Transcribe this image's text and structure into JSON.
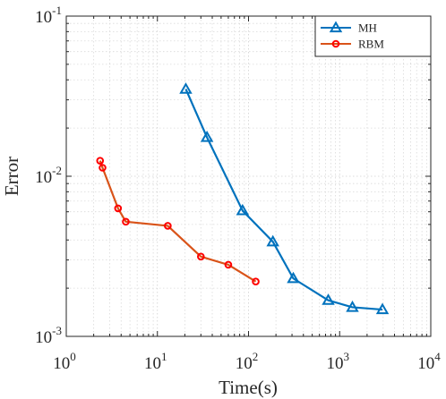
{
  "chart_data": {
    "type": "line",
    "title": "",
    "xlabel": "Time(s)",
    "ylabel": "Error",
    "x_scale": "log",
    "y_scale": "log",
    "xlim": [
      1,
      10000
    ],
    "ylim": [
      0.001,
      0.1
    ],
    "x_ticks": [
      {
        "value": 1,
        "base": "10",
        "exp": "0"
      },
      {
        "value": 10,
        "base": "10",
        "exp": "1"
      },
      {
        "value": 100,
        "base": "10",
        "exp": "2"
      },
      {
        "value": 1000,
        "base": "10",
        "exp": "3"
      },
      {
        "value": 10000,
        "base": "10",
        "exp": "4"
      }
    ],
    "y_ticks": [
      {
        "value": 0.001,
        "base": "10",
        "exp": "-3"
      },
      {
        "value": 0.01,
        "base": "10",
        "exp": "-2"
      },
      {
        "value": 0.1,
        "base": "10",
        "exp": "-1"
      }
    ],
    "grid": true,
    "minor_grid": true,
    "legend_position": "top-right",
    "series": [
      {
        "name": "MH",
        "color": "#0072BD",
        "marker": "triangle",
        "points": [
          {
            "x": 20.5,
            "y": 0.035
          },
          {
            "x": 35,
            "y": 0.0175
          },
          {
            "x": 86,
            "y": 0.0061
          },
          {
            "x": 185,
            "y": 0.0039
          },
          {
            "x": 310,
            "y": 0.0023
          },
          {
            "x": 750,
            "y": 0.00168
          },
          {
            "x": 1380,
            "y": 0.00152
          },
          {
            "x": 2950,
            "y": 0.00147
          }
        ]
      },
      {
        "name": "RBM",
        "color": "#D95319",
        "marker_edge": "#FF0000",
        "marker": "circle",
        "points": [
          {
            "x": 2.35,
            "y": 0.0125
          },
          {
            "x": 2.5,
            "y": 0.0113
          },
          {
            "x": 3.7,
            "y": 0.0063
          },
          {
            "x": 4.5,
            "y": 0.0052
          },
          {
            "x": 13,
            "y": 0.0049
          },
          {
            "x": 30,
            "y": 0.00315
          },
          {
            "x": 60,
            "y": 0.0028
          },
          {
            "x": 120,
            "y": 0.0022
          }
        ]
      }
    ]
  }
}
